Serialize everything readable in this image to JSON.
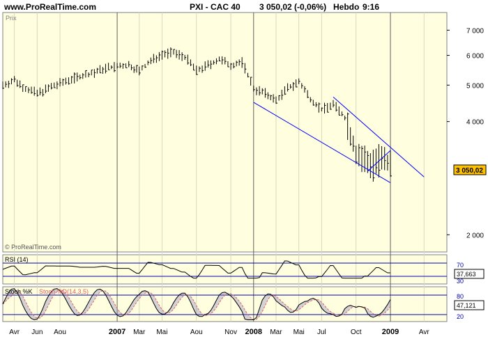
{
  "header": {
    "site": "www.ProRealTime.com",
    "ticker": "PXI - CAC 40",
    "price": "3 050,02 (-0,06%)",
    "period": "Hebdo",
    "time": "9:16"
  },
  "panels": {
    "price_label": "Prix",
    "watermark": "© ProRealTime.com",
    "last_price_box": "3 050,02",
    "rsi_label": "RSI (14)",
    "rsi_value": "37,663",
    "rsi_levels": [
      "70",
      "30"
    ],
    "stoch_label_k": "Stoch %K",
    "stoch_label_d": "Stoch %D(14,3,5)",
    "stoch_value": "47,121",
    "stoch_levels": [
      "80",
      "20"
    ]
  },
  "colors": {
    "background": "#ffffe0",
    "candles": "#000000",
    "trendline": "#0000ff",
    "price_box": "#ffc000",
    "stoch_d": "#e06060",
    "stoch_fill": "#8080c0"
  },
  "chart_data": {
    "type": "line",
    "title": "PXI - CAC 40",
    "ylabel": "Prix",
    "y_scale": "log",
    "ylim": [
      1800,
      7800
    ],
    "y_ticks": [
      "7 000",
      "6 000",
      "5 000",
      "4 000",
      "2 000"
    ],
    "y_tick_values": [
      7000,
      6000,
      5000,
      4000,
      2000
    ],
    "x_ticks": [
      "Avr",
      "Jun",
      "Aou",
      "2007",
      "Mar",
      "Mai",
      "Aou",
      "Nov",
      "2008",
      "Mar",
      "Mai",
      "Jul",
      "Oct",
      "2009",
      "Avr"
    ],
    "x_tick_dates": [
      "2006-04",
      "2006-06",
      "2006-08",
      "2007-01",
      "2007-03",
      "2007-05",
      "2007-08",
      "2007-11",
      "2008-01",
      "2008-03",
      "2008-05",
      "2008-07",
      "2008-10",
      "2009-01",
      "2009-04"
    ],
    "series": [
      {
        "values_by_month": [
          {
            "date": "2006-03",
            "value": 5000
          },
          {
            "date": "2006-04",
            "value": 5150
          },
          {
            "date": "2006-05",
            "value": 4900
          },
          {
            "date": "2006-06",
            "value": 4750
          },
          {
            "date": "2006-07",
            "value": 4900
          },
          {
            "date": "2006-08",
            "value": 5050
          },
          {
            "date": "2006-09",
            "value": 5200
          },
          {
            "date": "2006-10",
            "value": 5300
          },
          {
            "date": "2006-11",
            "value": 5400
          },
          {
            "date": "2006-12",
            "value": 5550
          },
          {
            "date": "2007-01",
            "value": 5600
          },
          {
            "date": "2007-02",
            "value": 5650
          },
          {
            "date": "2007-03",
            "value": 5450
          },
          {
            "date": "2007-04",
            "value": 5800
          },
          {
            "date": "2007-05",
            "value": 6050
          },
          {
            "date": "2007-06",
            "value": 6100
          },
          {
            "date": "2007-07",
            "value": 5950
          },
          {
            "date": "2007-08",
            "value": 5450
          },
          {
            "date": "2007-09",
            "value": 5650
          },
          {
            "date": "2007-10",
            "value": 5850
          },
          {
            "date": "2007-11",
            "value": 5650
          },
          {
            "date": "2007-12",
            "value": 5750
          },
          {
            "date": "2008-01",
            "value": 4900
          },
          {
            "date": "2008-02",
            "value": 4750
          },
          {
            "date": "2008-03",
            "value": 4550
          },
          {
            "date": "2008-04",
            "value": 4900
          },
          {
            "date": "2008-05",
            "value": 5100
          },
          {
            "date": "2008-06",
            "value": 4600
          },
          {
            "date": "2008-07",
            "value": 4300
          },
          {
            "date": "2008-08",
            "value": 4450
          },
          {
            "date": "2008-09",
            "value": 4100
          },
          {
            "date": "2008-10",
            "value": 3300
          },
          {
            "date": "2008-11",
            "value": 3100
          },
          {
            "date": "2008-12",
            "value": 3150
          },
          {
            "date": "2009-01",
            "value": 3050
          }
        ]
      }
    ],
    "trendlines": [
      {
        "from": {
          "date": "2008-01",
          "value": 4500
        },
        "to": {
          "date": "2009-01",
          "value": 2750
        }
      },
      {
        "from": {
          "date": "2008-08",
          "value": 4650
        },
        "to": {
          "date": "2009-04",
          "value": 2850
        }
      },
      {
        "from": {
          "date": "2008-11",
          "value": 2950
        },
        "to": {
          "date": "2009-01",
          "value": 3350
        }
      }
    ],
    "rsi": {
      "last": 37.663,
      "levels": [
        70,
        30
      ]
    },
    "stochastic": {
      "last": 47.121,
      "levels": [
        80,
        20
      ]
    }
  }
}
